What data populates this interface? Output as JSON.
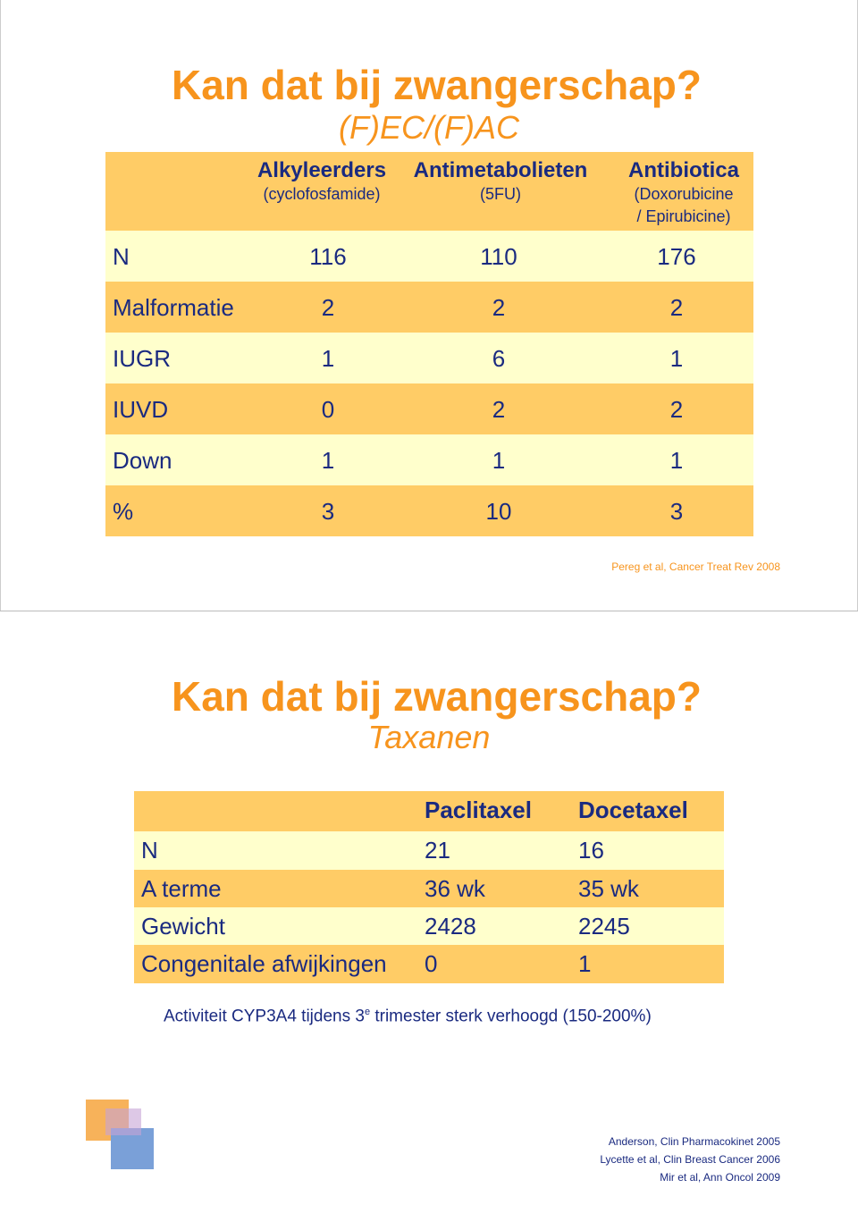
{
  "slides": [
    {
      "title": "Kan dat bij zwangerschap?",
      "subtitle": "(F)EC/(F)AC",
      "table": {
        "header": [
          {
            "name": "Alkyleerders",
            "sub": [
              "(cyclofosfamide)"
            ]
          },
          {
            "name": "Antimetabolieten",
            "sub": [
              "(5FU)"
            ]
          },
          {
            "name": "Antibiotica",
            "sub": [
              "(Doxorubicine",
              "/ Epirubicine)"
            ]
          }
        ],
        "rows": [
          [
            "N",
            116,
            110,
            176
          ],
          [
            "Malformatie",
            2,
            2,
            2
          ],
          [
            "IUGR",
            1,
            6,
            1
          ],
          [
            "IUVD",
            0,
            2,
            2
          ],
          [
            "Down",
            1,
            1,
            1
          ],
          [
            "%",
            3,
            10,
            3
          ]
        ]
      },
      "source": "Pereg et al, Cancer Treat Rev 2008"
    },
    {
      "title": "Kan dat bij zwangerschap?",
      "subtitle": "Taxanen",
      "table": {
        "header": [
          "Paclitaxel",
          "Docetaxel"
        ],
        "rows": [
          [
            "N",
            "21",
            "16"
          ],
          [
            "A terme",
            "36 wk",
            "35 wk"
          ],
          [
            "Gewicht",
            "2428",
            "2245"
          ],
          [
            "Congenitale afwijkingen",
            "0",
            "1"
          ]
        ]
      },
      "note": {
        "before": "Activiteit CYP3A4 tijdens 3",
        "sup": "e",
        "after": " trimester sterk verhoogd (150-200%)"
      },
      "references": [
        "Anderson, Clin Pharmacokinet 2005",
        "Lycette et al, Clin Breast Cancer 2006",
        "Mir et al, Ann Oncol 2009"
      ]
    }
  ]
}
